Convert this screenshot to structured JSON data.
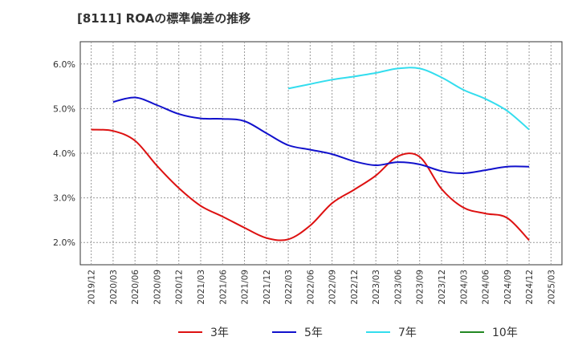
{
  "chart_data": {
    "type": "line",
    "title": "[8111]  ROAの標準偏差の推移",
    "y_ticks": [
      "6.0%",
      "5.0%",
      "4.0%",
      "3.0%",
      "2.0%"
    ],
    "y_tick_values": [
      6.0,
      5.0,
      4.0,
      3.0,
      2.0
    ],
    "ylim": [
      1.5,
      6.5
    ],
    "x": [
      "2019/12",
      "2020/03",
      "2020/06",
      "2020/09",
      "2020/12",
      "2021/03",
      "2021/06",
      "2021/09",
      "2021/12",
      "2022/03",
      "2022/06",
      "2022/09",
      "2022/12",
      "2023/03",
      "2023/06",
      "2023/09",
      "2023/12",
      "2024/03",
      "2024/06",
      "2024/09",
      "2024/12",
      "2025/03"
    ],
    "grid": true,
    "legend_position": "bottom",
    "series": [
      {
        "name": "3年",
        "color": "#dd1111",
        "values": [
          4.53,
          4.5,
          4.28,
          3.72,
          3.22,
          2.82,
          2.58,
          2.33,
          2.1,
          2.07,
          2.38,
          2.88,
          3.18,
          3.5,
          3.93,
          3.92,
          3.2,
          2.78,
          2.65,
          2.55,
          2.05,
          null
        ]
      },
      {
        "name": "5年",
        "color": "#1111cc",
        "values": [
          null,
          5.15,
          5.25,
          5.08,
          4.88,
          4.78,
          4.77,
          4.72,
          4.45,
          4.18,
          4.08,
          3.98,
          3.82,
          3.73,
          3.8,
          3.75,
          3.6,
          3.55,
          3.62,
          3.7,
          3.7,
          null
        ]
      },
      {
        "name": "7年",
        "color": "#33ddee",
        "values": [
          null,
          null,
          null,
          null,
          null,
          null,
          null,
          null,
          null,
          5.45,
          5.55,
          5.65,
          5.72,
          5.8,
          5.9,
          5.9,
          5.7,
          5.42,
          5.22,
          4.95,
          4.53,
          null
        ]
      },
      {
        "name": "10年",
        "color": "#228822",
        "values": [
          null,
          null,
          null,
          null,
          null,
          null,
          null,
          null,
          null,
          null,
          null,
          null,
          null,
          null,
          null,
          null,
          null,
          null,
          null,
          null,
          null,
          null
        ]
      }
    ]
  }
}
